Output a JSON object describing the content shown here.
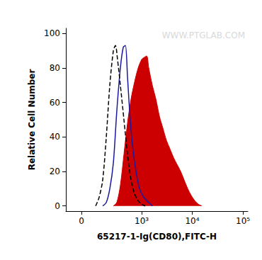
{
  "chart_data": {
    "type": "line",
    "x_label": "65217-1-Ig(CD80),FITC-H",
    "y_label": "Relative Cell Number",
    "watermark": "WWW.PTGLAB.COM",
    "log": "x",
    "grid": false,
    "xlim": [
      -100,
      125000
    ],
    "xticks": [
      0,
      {
        "value": 1000,
        "label": "10³"
      },
      {
        "value": 10000,
        "label": "10⁴"
      },
      {
        "value": 100000,
        "label": "10⁵"
      }
    ],
    "ylim": [
      -3,
      103
    ],
    "yticks": [
      0,
      20,
      40,
      60,
      80,
      100
    ],
    "series": [
      {
        "type": "area",
        "color": "#cc0000",
        "line_style": "solid",
        "x": [
          262,
          311,
          370,
          439,
          519,
          612,
          722,
          850,
          1000,
          1102,
          1256,
          1382,
          1625,
          1911,
          2249,
          2639,
          3094,
          3640,
          4277,
          5018,
          5902,
          6929,
          8138,
          9568,
          11245,
          13208,
          15509
        ],
        "values": [
          0,
          2,
          12,
          30,
          48,
          62,
          72,
          80,
          85,
          86,
          87,
          80,
          70,
          62,
          52,
          45,
          38,
          33,
          28,
          24,
          20,
          15,
          10,
          6,
          3,
          1,
          0
        ]
      },
      {
        "type": "line",
        "color": "#1a1aa0",
        "line_style": "solid",
        "x": [
          146,
          180,
          218,
          262,
          311,
          370,
          425,
          470,
          519,
          573,
          654,
          771,
          907,
          1102,
          1382,
          1625
        ],
        "values": [
          0,
          2,
          10,
          25,
          55,
          80,
          92,
          93,
          75,
          55,
          35,
          20,
          10,
          5,
          2,
          0
        ]
      },
      {
        "type": "line",
        "color": "#000000",
        "line_style": "dashed",
        "x": [
          90,
          116,
          146,
          180,
          218,
          262,
          291,
          322,
          370,
          439,
          519,
          612,
          722,
          850,
          1000,
          1177
        ],
        "values": [
          0,
          5,
          15,
          40,
          70,
          90,
          93,
          85,
          70,
          50,
          30,
          15,
          7,
          3,
          1,
          0
        ]
      }
    ]
  }
}
